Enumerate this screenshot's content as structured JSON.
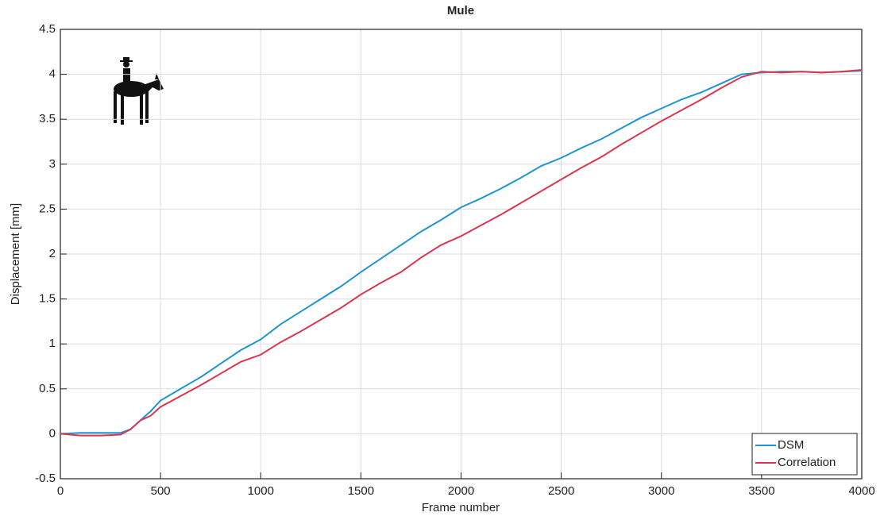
{
  "chart_data": {
    "type": "line",
    "title": "Mule",
    "x_label": "Frame number",
    "y_label": "Displacement [mm]",
    "x": [
      0,
      100,
      200,
      300,
      350,
      400,
      450,
      500,
      600,
      700,
      800,
      900,
      1000,
      1100,
      1200,
      1300,
      1400,
      1500,
      1600,
      1700,
      1800,
      1900,
      2000,
      2100,
      2200,
      2300,
      2400,
      2500,
      2600,
      2700,
      2800,
      2900,
      3000,
      3100,
      3200,
      3300,
      3400,
      3500,
      3600,
      3700,
      3800,
      3900,
      4000
    ],
    "series": [
      {
        "name": "DSM",
        "color": "#1f95cf",
        "values": [
          0,
          0.01,
          0.01,
          0.01,
          0.05,
          0.15,
          0.25,
          0.37,
          0.5,
          0.63,
          0.78,
          0.93,
          1.05,
          1.22,
          1.36,
          1.5,
          1.64,
          1.8,
          1.95,
          2.1,
          2.25,
          2.38,
          2.52,
          2.62,
          2.73,
          2.85,
          2.98,
          3.07,
          3.18,
          3.28,
          3.4,
          3.52,
          3.62,
          3.72,
          3.8,
          3.9,
          4.0,
          4.02,
          4.03,
          4.03,
          4.02,
          4.03,
          4.04
        ]
      },
      {
        "name": "Correlation",
        "color": "#d9364f",
        "values": [
          0,
          -0.02,
          -0.02,
          -0.01,
          0.05,
          0.15,
          0.2,
          0.3,
          0.42,
          0.54,
          0.67,
          0.8,
          0.88,
          1.02,
          1.14,
          1.27,
          1.4,
          1.55,
          1.68,
          1.8,
          1.96,
          2.1,
          2.2,
          2.32,
          2.44,
          2.57,
          2.7,
          2.83,
          2.96,
          3.08,
          3.22,
          3.35,
          3.48,
          3.6,
          3.72,
          3.85,
          3.97,
          4.03,
          4.02,
          4.03,
          4.02,
          4.03,
          4.05
        ]
      }
    ],
    "xlim": [
      0,
      4000
    ],
    "xticks": [
      0,
      500,
      1000,
      1500,
      2000,
      2500,
      3000,
      3500,
      4000
    ],
    "ylim": [
      -0.5,
      4.5
    ],
    "yticks": [
      -0.5,
      0,
      0.5,
      1,
      1.5,
      2,
      2.5,
      3,
      3.5,
      4,
      4.5
    ],
    "grid": true,
    "legend": "lower right"
  }
}
